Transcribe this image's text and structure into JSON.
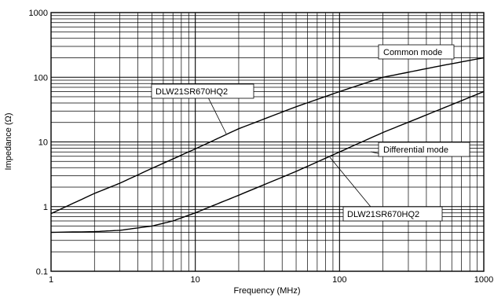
{
  "chart_data": {
    "type": "line",
    "xlabel": "Frequency (MHz)",
    "ylabel": "Impedance (Ω)",
    "xscale": "log",
    "yscale": "log",
    "xlim": [
      1,
      1000
    ],
    "ylim": [
      0.1,
      1000
    ],
    "grid": true,
    "x_tick_labels": [
      "1",
      "10",
      "100",
      "1000"
    ],
    "y_tick_labels": [
      "0.1",
      "1",
      "10",
      "100",
      "1000"
    ],
    "series": [
      {
        "name": "Common mode",
        "x": [
          1,
          2,
          3,
          5,
          10,
          20,
          50,
          100,
          200,
          500,
          1000
        ],
        "y": [
          0.78,
          1.6,
          2.3,
          3.9,
          7.8,
          16,
          35,
          60,
          100,
          150,
          200
        ]
      },
      {
        "name": "Differential mode",
        "x": [
          1,
          2,
          3,
          5,
          7,
          10,
          20,
          50,
          100,
          200,
          500,
          1000
        ],
        "y": [
          0.4,
          0.41,
          0.43,
          0.5,
          0.6,
          0.8,
          1.5,
          3.5,
          7,
          14,
          32,
          60
        ]
      }
    ],
    "annotations": [
      {
        "text": "Common mode",
        "target": "Common mode"
      },
      {
        "text": "DLW21SR670HQ2",
        "target": "Common mode"
      },
      {
        "text": "Differential mode",
        "target": "Differential mode"
      },
      {
        "text": "DLW21SR670HQ2",
        "target": "Differential mode"
      }
    ]
  }
}
